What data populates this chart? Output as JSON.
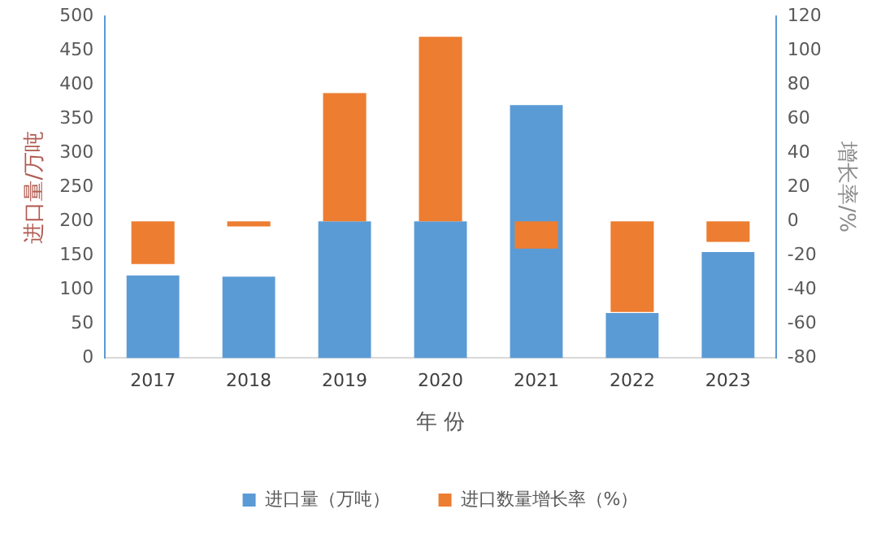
{
  "chart_data": {
    "type": "bar",
    "xlabel": "年 份",
    "ylabel": "进口量/万吨",
    "y2label": "增长率/%",
    "categories": [
      "2017",
      "2018",
      "2019",
      "2020",
      "2021",
      "2022",
      "2023"
    ],
    "series": [
      {
        "name": "进口量（万吨）",
        "color": "#5b9bd5",
        "values": [
          121,
          119,
          200,
          200,
          370,
          66,
          155
        ]
      },
      {
        "name": "进口数量增长率（%）",
        "color": "#ed7d31",
        "axis": "y2",
        "values": [
          -25,
          -3,
          75,
          108,
          -16,
          -53,
          -12
        ]
      }
    ],
    "ylim": [
      0,
      500
    ],
    "yticks": [
      0,
      50,
      100,
      150,
      200,
      250,
      300,
      350,
      400,
      450,
      500
    ],
    "y2lim": [
      -80,
      120
    ],
    "y2ticks": [
      -80,
      -60,
      -40,
      -20,
      0,
      20,
      40,
      60,
      80,
      100,
      120
    ],
    "grid": false,
    "legend": "bottom"
  }
}
